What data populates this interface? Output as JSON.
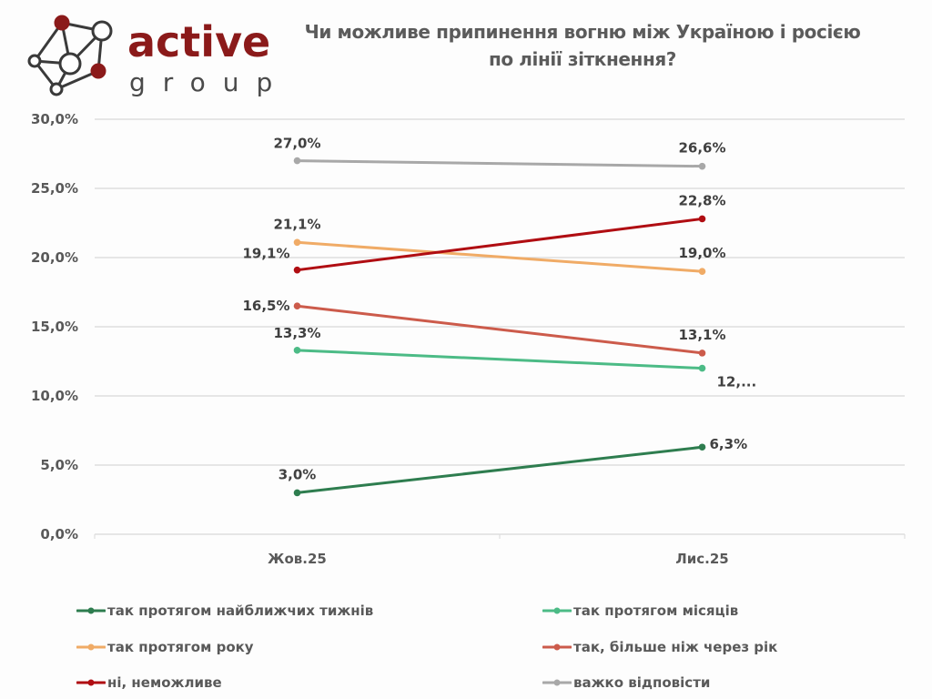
{
  "logo": {
    "word1": "active",
    "word2": "group",
    "brand_color": "#8b1a1a"
  },
  "chart_data": {
    "type": "line",
    "title_line1": "Чи можливе припинення вогню між Україною і росією",
    "title_line2": "по лінії зіткнення?",
    "categories": [
      "Жов.25",
      "Лис.25"
    ],
    "ylim": [
      0,
      30
    ],
    "yticks": [
      "0,0%",
      "5,0%",
      "10,0%",
      "15,0%",
      "20,0%",
      "25,0%",
      "30,0%"
    ],
    "ytick_values": [
      0,
      5,
      10,
      15,
      20,
      25,
      30
    ],
    "grid": true,
    "legend_position": "bottom",
    "series": [
      {
        "name": "так протягом найближчих тижнів",
        "color": "#2e7d4f",
        "values": [
          3.0,
          6.3
        ],
        "labels": [
          "3,0%",
          "6,3%"
        ]
      },
      {
        "name": "так протягом місяців",
        "color": "#4cbb86",
        "values": [
          13.3,
          12.0
        ],
        "labels": [
          "13,3%",
          "12,..."
        ]
      },
      {
        "name": "так протягом року",
        "color": "#f0ab66",
        "values": [
          21.1,
          19.0
        ],
        "labels": [
          "21,1%",
          "19,0%"
        ]
      },
      {
        "name": "так, більше ніж через рік",
        "color": "#cc5b4b",
        "values": [
          16.5,
          13.1
        ],
        "labels": [
          "16,5%",
          "13,1%"
        ]
      },
      {
        "name": "ні, неможливе",
        "color": "#b00d12",
        "values": [
          19.1,
          22.8
        ],
        "labels": [
          "19,1%",
          "22,8%"
        ]
      },
      {
        "name": "важко відповісти",
        "color": "#a8a8a8",
        "values": [
          27.0,
          26.6
        ],
        "labels": [
          "27,0%",
          "26,6%"
        ]
      }
    ]
  }
}
